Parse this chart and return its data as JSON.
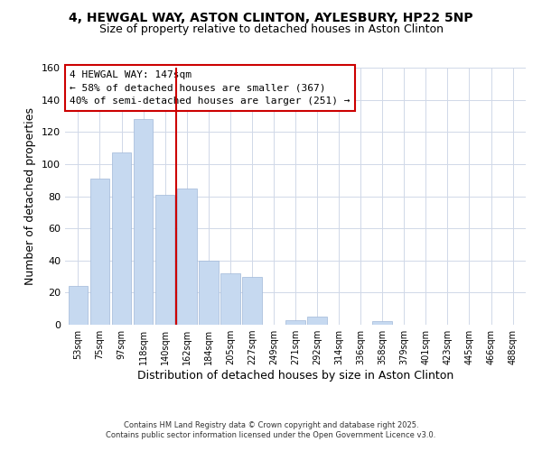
{
  "title": "4, HEWGAL WAY, ASTON CLINTON, AYLESBURY, HP22 5NP",
  "subtitle": "Size of property relative to detached houses in Aston Clinton",
  "xlabel": "Distribution of detached houses by size in Aston Clinton",
  "ylabel": "Number of detached properties",
  "categories": [
    "53sqm",
    "75sqm",
    "97sqm",
    "118sqm",
    "140sqm",
    "162sqm",
    "184sqm",
    "205sqm",
    "227sqm",
    "249sqm",
    "271sqm",
    "292sqm",
    "314sqm",
    "336sqm",
    "358sqm",
    "379sqm",
    "401sqm",
    "423sqm",
    "445sqm",
    "466sqm",
    "488sqm"
  ],
  "values": [
    24,
    91,
    107,
    128,
    81,
    85,
    40,
    32,
    30,
    0,
    3,
    5,
    0,
    0,
    2,
    0,
    0,
    0,
    0,
    0,
    0
  ],
  "bar_color": "#c6d9f0",
  "bar_edge_color": "#a0b8d8",
  "vline_x": 4.5,
  "vline_color": "#cc0000",
  "ylim": [
    0,
    160
  ],
  "yticks": [
    0,
    20,
    40,
    60,
    80,
    100,
    120,
    140,
    160
  ],
  "annotation_title": "4 HEWGAL WAY: 147sqm",
  "annotation_line1": "← 58% of detached houses are smaller (367)",
  "annotation_line2": "40% of semi-detached houses are larger (251) →",
  "footer1": "Contains HM Land Registry data © Crown copyright and database right 2025.",
  "footer2": "Contains public sector information licensed under the Open Government Licence v3.0.",
  "title_fontsize": 10,
  "subtitle_fontsize": 9,
  "xlabel_fontsize": 9,
  "ylabel_fontsize": 9,
  "annotation_fontsize": 8,
  "footer_fontsize": 6,
  "tick_fontsize": 7,
  "ytick_fontsize": 8,
  "background_color": "#ffffff",
  "grid_color": "#d0d8e8"
}
